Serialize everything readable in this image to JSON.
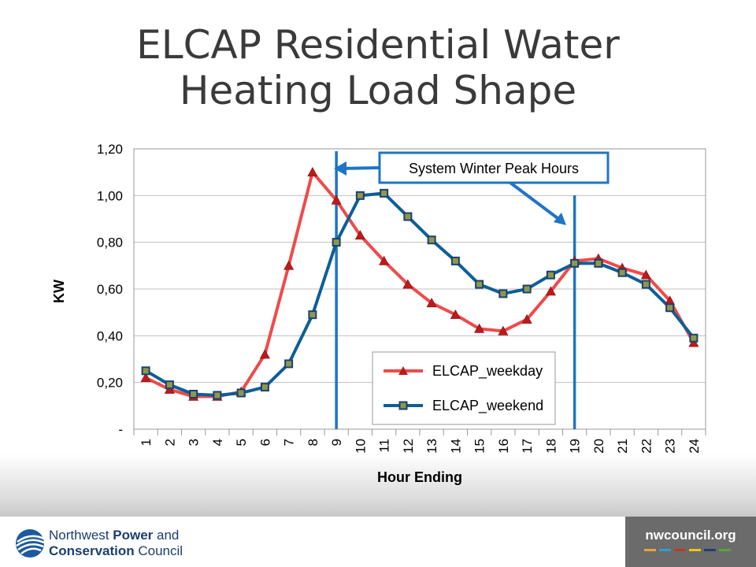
{
  "slide": {
    "title_line1": "ELCAP Residential Water",
    "title_line2": "Heating Load Shape"
  },
  "chart_data": {
    "type": "line",
    "title": "",
    "xlabel": "Hour Ending",
    "ylabel": "KW",
    "x": [
      1,
      2,
      3,
      4,
      5,
      6,
      7,
      8,
      9,
      10,
      11,
      12,
      13,
      14,
      15,
      16,
      17,
      18,
      19,
      20,
      21,
      22,
      23,
      24
    ],
    "ylim": [
      0,
      1.2
    ],
    "y_ticks": [
      0,
      0.2,
      0.4,
      0.6,
      0.8,
      1.0,
      1.2
    ],
    "y_tick_labels": [
      "-",
      "0,20",
      "0,40",
      "0,60",
      "0,80",
      "1,00",
      "1,20"
    ],
    "grid": true,
    "legend_position": "bottom-center",
    "series": [
      {
        "name": "ELCAP_weekday",
        "color": "#f04a4a",
        "marker": "triangle",
        "marker_color": "#c0191b",
        "values": [
          0.22,
          0.17,
          0.14,
          0.14,
          0.16,
          0.32,
          0.7,
          1.1,
          0.98,
          0.83,
          0.72,
          0.62,
          0.54,
          0.49,
          0.43,
          0.42,
          0.47,
          0.59,
          0.72,
          0.73,
          0.69,
          0.66,
          0.55,
          0.37
        ]
      },
      {
        "name": "ELCAP_weekend",
        "color": "#0d5f96",
        "marker": "square",
        "marker_color": "#1f3f6f",
        "values": [
          0.25,
          0.19,
          0.15,
          0.145,
          0.155,
          0.18,
          0.28,
          0.49,
          0.8,
          1.0,
          1.01,
          0.91,
          0.81,
          0.72,
          0.62,
          0.58,
          0.6,
          0.66,
          0.71,
          0.71,
          0.67,
          0.62,
          0.52,
          0.39
        ]
      }
    ],
    "peak_lines": {
      "hours": [
        9,
        19
      ],
      "color": "#1f74c5",
      "callout": "System  Winter Peak Hours"
    }
  },
  "footer": {
    "org_line1_a": "Northwest ",
    "org_line1_b": "Power",
    "org_line1_c": " and",
    "org_line2_a": "Conservation",
    "org_line2_b": " Council",
    "url": "nwcouncil.org",
    "bar_colors": [
      "#e8a33d",
      "#2e9fd6",
      "#c0392b",
      "#f0c419",
      "#1f3f6f",
      "#5aa33d"
    ],
    "logo_icon": "swoosh-logo-icon"
  }
}
